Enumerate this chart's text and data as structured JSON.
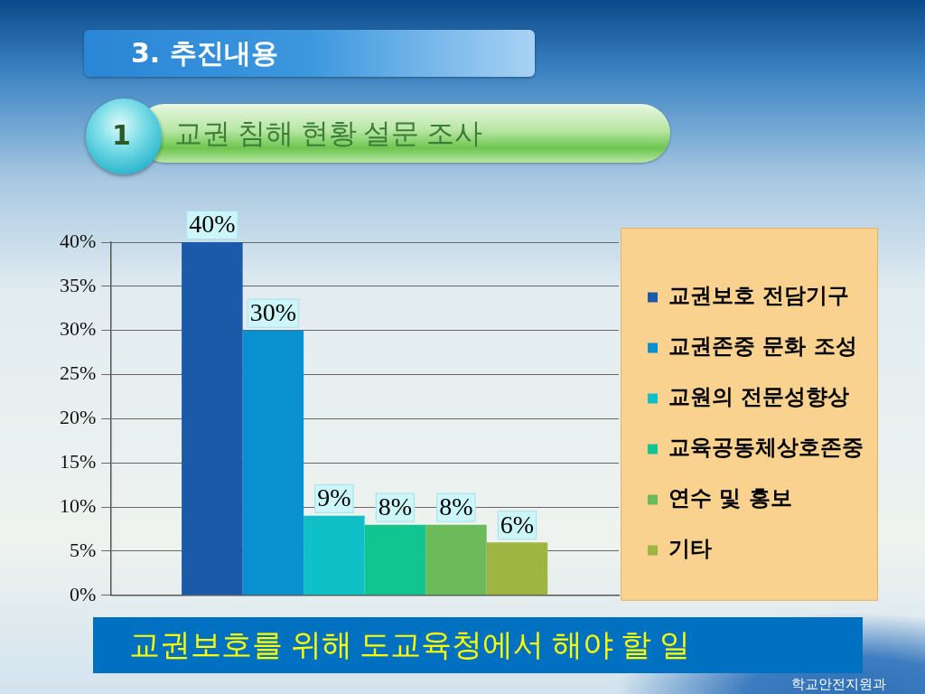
{
  "chart_data": {
    "type": "bar",
    "title": "3. 추진내용",
    "subtitle": "교권 침해 현황 설문 조사",
    "categories": [
      null
    ],
    "series": [
      {
        "name": "교권보호 전담기구",
        "color": "#1a5aa8",
        "values": [
          40
        ],
        "value_labels": [
          "40%"
        ]
      },
      {
        "name": "교권존중 문화 조성",
        "color": "#0890d0",
        "values": [
          30
        ],
        "value_labels": [
          "30%"
        ]
      },
      {
        "name": "교원의 전문성향상",
        "color": "#10c0c8",
        "values": [
          9
        ],
        "value_labels": [
          "9%"
        ]
      },
      {
        "name": "교육공동체상호존중",
        "color": "#12c490",
        "values": [
          8
        ],
        "value_labels": [
          "8%"
        ]
      },
      {
        "name": "연수 및 홍보",
        "color": "#6cbb5a",
        "values": [
          8
        ],
        "value_labels": [
          "8%"
        ]
      },
      {
        "name": "기타",
        "color": "#9fb542",
        "values": [
          6
        ],
        "value_labels": [
          "6%"
        ]
      }
    ],
    "ylim": [
      0,
      40
    ],
    "yticks": [
      {
        "value": 0,
        "label": "0%"
      },
      {
        "value": 5,
        "label": "5%"
      },
      {
        "value": 10,
        "label": "10%"
      },
      {
        "value": 15,
        "label": "15%"
      },
      {
        "value": 20,
        "label": "20%"
      },
      {
        "value": 25,
        "label": "25%"
      },
      {
        "value": 30,
        "label": "30%"
      },
      {
        "value": 35,
        "label": "35%"
      },
      {
        "value": 40,
        "label": "40%"
      }
    ],
    "grid": "y",
    "legend": "right",
    "tick_labels": "y",
    "annotations": [
      "1",
      "교권보호를 위해 도교육청에서 해야 할 일",
      "학교안전지원과"
    ]
  }
}
